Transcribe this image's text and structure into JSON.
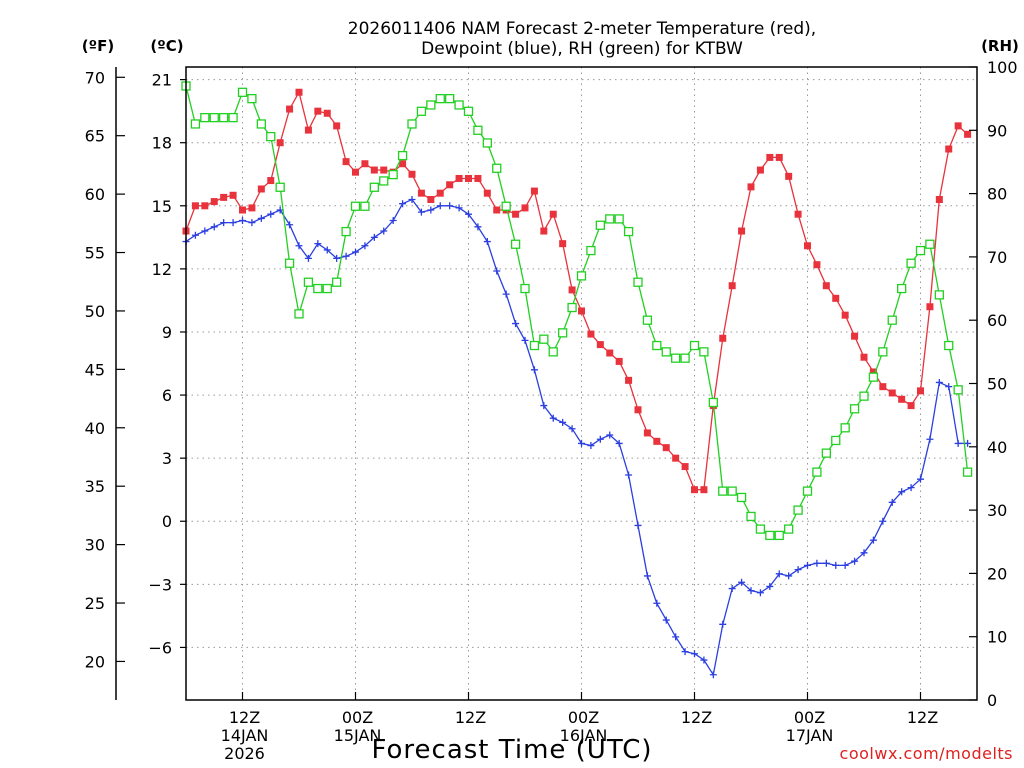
{
  "chart_data": {
    "type": "line",
    "title_line1": "2026011406 NAM Forecast 2-meter Temperature (red),",
    "title_line2": "Dewpoint (blue), RH (green) for KTBW",
    "xlabel": "Forecast Time (UTC)",
    "credit": "coolwx.com/modelts",
    "axis_units": {
      "fahrenheit": "(ºF)",
      "celsius": "(ºC)",
      "rh": "(RH)"
    },
    "celsius_ylim": [
      -8.5,
      21.6
    ],
    "rh_ylim": [
      0,
      100
    ],
    "celsius_ticks": [
      "21",
      "18",
      "15",
      "12",
      "9",
      "6",
      "3",
      "0",
      "−3",
      "−6"
    ],
    "fahrenheit_ticks": [
      "70",
      "65",
      "60",
      "55",
      "50",
      "45",
      "40",
      "35",
      "30",
      "25",
      "20"
    ],
    "rh_ticks": [
      "100",
      "90",
      "80",
      "70",
      "60",
      "50",
      "40",
      "30",
      "20",
      "10",
      "0"
    ],
    "x_range_hours": [
      0,
      84
    ],
    "x_ticks": [
      {
        "hour": 6,
        "label1": "12Z",
        "label2": "14JAN",
        "label3": "2026"
      },
      {
        "hour": 18,
        "label1": "00Z",
        "label2": "15JAN",
        "label3": ""
      },
      {
        "hour": 30,
        "label1": "12Z",
        "label2": "",
        "label3": ""
      },
      {
        "hour": 42,
        "label1": "00Z",
        "label2": "16JAN",
        "label3": ""
      },
      {
        "hour": 54,
        "label1": "12Z",
        "label2": "",
        "label3": ""
      },
      {
        "hour": 66,
        "label1": "00Z",
        "label2": "17JAN",
        "label3": ""
      },
      {
        "hour": 78,
        "label1": "12Z",
        "label2": "",
        "label3": ""
      }
    ],
    "series": [
      {
        "name": "Temperature",
        "color": "#e8323c",
        "marker": "filled-square",
        "axis": "celsius",
        "values": [
          13.8,
          15.0,
          15.0,
          15.2,
          15.4,
          15.5,
          14.8,
          14.9,
          15.8,
          16.2,
          18.0,
          19.6,
          20.4,
          18.6,
          19.5,
          19.4,
          18.8,
          17.1,
          16.6,
          17.0,
          16.7,
          16.7,
          16.6,
          17.0,
          16.5,
          15.6,
          15.3,
          15.6,
          16.0,
          16.3,
          16.3,
          16.3,
          15.6,
          14.8,
          14.8,
          14.6,
          14.9,
          15.7,
          13.8,
          14.6,
          13.2,
          11.0,
          10.0,
          8.9,
          8.4,
          8.0,
          7.6,
          6.7,
          5.3,
          4.2,
          3.8,
          3.5,
          3.0,
          2.6,
          1.5,
          1.5,
          5.5,
          8.7,
          11.2,
          13.8,
          15.9,
          16.7,
          17.3,
          17.3,
          16.4,
          14.6,
          13.1,
          12.2,
          11.2,
          10.6,
          9.8,
          8.8,
          7.8,
          7.1,
          6.4,
          6.1,
          5.8,
          5.5,
          6.2,
          10.2,
          15.3,
          17.7,
          18.8,
          18.4
        ]
      },
      {
        "name": "Dewpoint",
        "color": "#2b3fe0",
        "marker": "plus",
        "axis": "celsius",
        "values": [
          13.3,
          13.6,
          13.8,
          14.0,
          14.2,
          14.2,
          14.3,
          14.2,
          14.4,
          14.6,
          14.8,
          14.1,
          13.1,
          12.5,
          13.2,
          12.9,
          12.5,
          12.6,
          12.8,
          13.1,
          13.5,
          13.8,
          14.3,
          15.1,
          15.3,
          14.7,
          14.8,
          15.0,
          15.0,
          14.9,
          14.6,
          14.0,
          13.3,
          11.9,
          10.8,
          9.4,
          8.6,
          7.2,
          5.5,
          4.9,
          4.7,
          4.4,
          3.7,
          3.6,
          3.9,
          4.1,
          3.7,
          2.2,
          -0.2,
          -2.6,
          -3.9,
          -4.7,
          -5.5,
          -6.2,
          -6.3,
          -6.6,
          -7.3,
          -4.9,
          -3.2,
          -2.9,
          -3.3,
          -3.4,
          -3.1,
          -2.5,
          -2.6,
          -2.3,
          -2.1,
          -2.0,
          -2.0,
          -2.1,
          -2.1,
          -1.9,
          -1.5,
          -0.9,
          0.0,
          0.9,
          1.4,
          1.6,
          2.0,
          3.9,
          6.6,
          6.4,
          3.7,
          3.7
        ]
      },
      {
        "name": "RH",
        "color": "#22d022",
        "marker": "open-square",
        "axis": "rh",
        "values": [
          97,
          91,
          92,
          92,
          92,
          92,
          96,
          95,
          91,
          89,
          81,
          69,
          61,
          66,
          65,
          65,
          66,
          74,
          78,
          78,
          81,
          82,
          83,
          86,
          91,
          93,
          94,
          95,
          95,
          94,
          93,
          90,
          88,
          84,
          78,
          72,
          65,
          56,
          57,
          55,
          58,
          62,
          67,
          71,
          75,
          76,
          76,
          74,
          66,
          60,
          56,
          55,
          54,
          54,
          56,
          55,
          47,
          33,
          33,
          32,
          29,
          27,
          26,
          26,
          27,
          30,
          33,
          36,
          39,
          41,
          43,
          46,
          48,
          51,
          55,
          60,
          65,
          69,
          71,
          72,
          64,
          56,
          49,
          36
        ]
      }
    ]
  }
}
